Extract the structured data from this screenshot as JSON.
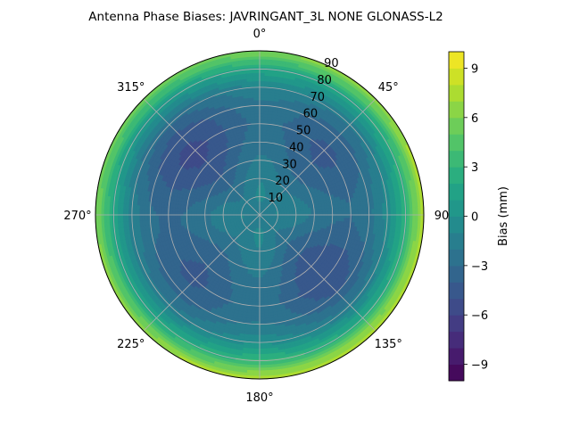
{
  "chart_data": {
    "type": "polar-contour",
    "title": "Antenna Phase Biases: JAVRINGANT_3L   NONE GLONASS-L2",
    "angular_axis": {
      "zero_location": "top",
      "direction": "clockwise",
      "ticks": [
        0,
        45,
        90,
        135,
        180,
        225,
        270,
        315
      ],
      "tick_labels": [
        "0°",
        "45°",
        "90",
        "135°",
        "180°",
        "225°",
        "270°",
        "315°"
      ]
    },
    "radial_axis": {
      "range": [
        0,
        90
      ],
      "ticks": [
        10,
        20,
        30,
        40,
        50,
        60,
        70,
        80,
        90
      ],
      "tick_labels": [
        "10",
        "20",
        "30",
        "40",
        "50",
        "60",
        "70",
        "80",
        "90"
      ],
      "label_angle_deg": 22.5
    },
    "grid": true,
    "colorbar": {
      "label": "Bias (mm)",
      "range": [
        -10,
        10
      ],
      "levels": 20,
      "ticks": [
        -9,
        -6,
        -3,
        0,
        3,
        6,
        9
      ],
      "tick_labels": [
        "−9",
        "−6",
        "−3",
        "0",
        "3",
        "6",
        "9"
      ],
      "colormap": "viridis"
    },
    "field_profile": {
      "zenith": [
        0,
        10,
        20,
        30,
        40,
        50,
        60,
        70,
        80,
        90
      ],
      "bias_mm": [
        -1.5,
        -1.2,
        -1.8,
        -2.8,
        -3.5,
        -3.8,
        -3.2,
        -1.5,
        2.0,
        7.0
      ]
    }
  }
}
